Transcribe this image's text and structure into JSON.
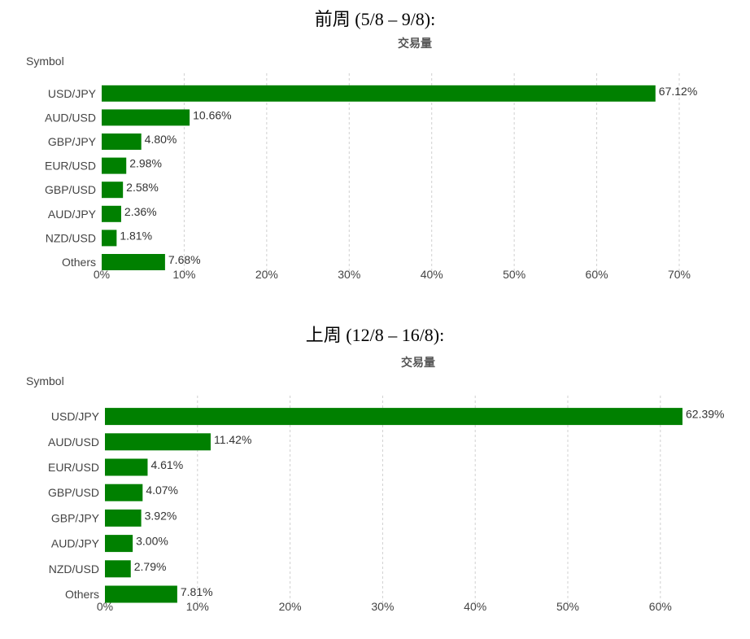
{
  "headings": [
    "前周 (5/8 – 9/8):",
    "上周 (12/8 – 16/8):"
  ],
  "colors": {
    "bar": "#008000"
  },
  "chart_data": [
    {
      "type": "bar",
      "orientation": "horizontal",
      "title": "交易量",
      "ylabel": "Symbol",
      "categories": [
        "USD/JPY",
        "AUD/USD",
        "GBP/JPY",
        "EUR/USD",
        "GBP/USD",
        "AUD/JPY",
        "NZD/USD",
        "Others"
      ],
      "values": [
        67.12,
        10.66,
        4.8,
        2.98,
        2.58,
        2.36,
        1.81,
        7.68
      ],
      "data_labels": [
        "67.12%",
        "10.66%",
        "4.80%",
        "2.98%",
        "2.58%",
        "2.36%",
        "1.81%",
        "7.68%"
      ],
      "xlim": [
        0,
        70
      ],
      "xticks": [
        0,
        10,
        20,
        30,
        40,
        50,
        60,
        70
      ],
      "xtick_labels": [
        "0%",
        "10%",
        "20%",
        "30%",
        "40%",
        "50%",
        "60%",
        "70%"
      ],
      "grid": true
    },
    {
      "type": "bar",
      "orientation": "horizontal",
      "title": "交易量",
      "ylabel": "Symbol",
      "categories": [
        "USD/JPY",
        "AUD/USD",
        "EUR/USD",
        "GBP/USD",
        "GBP/JPY",
        "AUD/JPY",
        "NZD/USD",
        "Others"
      ],
      "values": [
        62.39,
        11.42,
        4.61,
        4.07,
        3.92,
        3.0,
        2.79,
        7.81
      ],
      "data_labels": [
        "62.39%",
        "11.42%",
        "4.61%",
        "4.07%",
        "3.92%",
        "3.00%",
        "2.79%",
        "7.81%"
      ],
      "xlim": [
        0,
        62.39
      ],
      "xticks": [
        0,
        10,
        20,
        30,
        40,
        50,
        60
      ],
      "xtick_labels": [
        "0%",
        "10%",
        "20%",
        "30%",
        "40%",
        "50%",
        "60%"
      ],
      "grid": true
    }
  ]
}
